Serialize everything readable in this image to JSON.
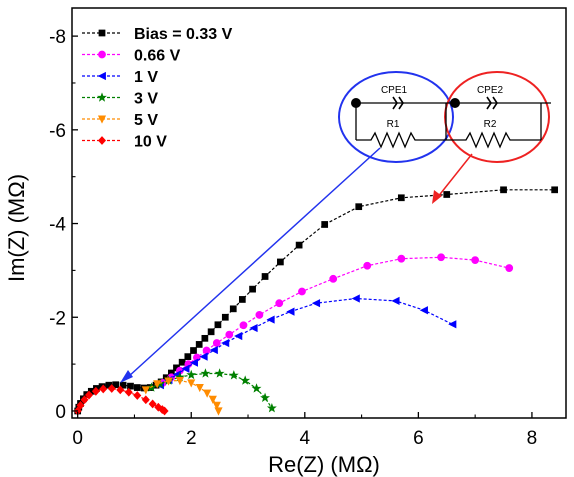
{
  "chart_data": {
    "type": "scatter",
    "title": "",
    "xlabel": "Re(Z) (MΩ)",
    "ylabel": "Im(Z) (MΩ)",
    "xlim": [
      -0.1,
      8.6
    ],
    "ylim": [
      0.15,
      -8.6
    ],
    "y_inverted": true,
    "x_ticks": [
      0,
      2,
      4,
      6,
      8
    ],
    "x_tick_labels": [
      "0",
      "2",
      "4",
      "6",
      "8"
    ],
    "y_ticks": [
      0,
      -2,
      -4,
      -6,
      -8
    ],
    "y_tick_labels": [
      "0",
      "-2",
      "-4",
      "-6",
      "-8"
    ],
    "grid": false,
    "legend_position": "top-left",
    "series": [
      {
        "name": "Bias = 0.33 V",
        "color": "#000000",
        "marker": "square",
        "x": [
          0.0,
          0.02,
          0.05,
          0.1,
          0.16,
          0.24,
          0.33,
          0.43,
          0.55,
          0.67,
          0.8,
          0.93,
          1.05,
          1.17,
          1.28,
          1.38,
          1.47,
          1.56,
          1.65,
          1.74,
          1.84,
          1.94,
          2.04,
          2.14,
          2.24,
          2.35,
          2.47,
          2.6,
          2.74,
          2.9,
          3.08,
          3.3,
          3.57,
          3.9,
          4.35,
          4.95,
          5.7,
          6.5,
          7.5,
          8.4
        ],
        "y": [
          0.0,
          -0.08,
          -0.16,
          -0.26,
          -0.35,
          -0.42,
          -0.48,
          -0.52,
          -0.55,
          -0.56,
          -0.55,
          -0.53,
          -0.5,
          -0.49,
          -0.5,
          -0.55,
          -0.62,
          -0.71,
          -0.81,
          -0.92,
          -1.04,
          -1.16,
          -1.29,
          -1.42,
          -1.55,
          -1.69,
          -1.84,
          -2.0,
          -2.18,
          -2.38,
          -2.6,
          -2.87,
          -3.18,
          -3.54,
          -3.98,
          -4.36,
          -4.55,
          -4.62,
          -4.72,
          -4.72
        ]
      },
      {
        "name": "0.66 V",
        "color": "#ff00ff",
        "marker": "circle",
        "x": [
          1.5,
          1.65,
          1.8,
          1.95,
          2.1,
          2.27,
          2.45,
          2.67,
          2.92,
          3.2,
          3.55,
          3.95,
          4.5,
          5.1,
          5.7,
          6.4,
          7.0,
          7.6
        ],
        "y": [
          -0.6,
          -0.72,
          -0.86,
          -1.0,
          -1.14,
          -1.29,
          -1.45,
          -1.63,
          -1.83,
          -2.05,
          -2.3,
          -2.55,
          -2.82,
          -3.1,
          -3.25,
          -3.28,
          -3.22,
          -3.05
        ]
      },
      {
        "name": "1 V",
        "color": "#0000ff",
        "marker": "triangle-left",
        "x": [
          1.45,
          1.6,
          1.75,
          1.9,
          2.05,
          2.22,
          2.4,
          2.6,
          2.83,
          3.1,
          3.4,
          3.75,
          4.2,
          4.9,
          5.6,
          6.1,
          6.6
        ],
        "y": [
          -0.55,
          -0.66,
          -0.78,
          -0.9,
          -1.03,
          -1.16,
          -1.3,
          -1.45,
          -1.6,
          -1.77,
          -1.95,
          -2.12,
          -2.3,
          -2.4,
          -2.35,
          -2.15,
          -1.85
        ]
      },
      {
        "name": "3 V",
        "color": "#008000",
        "marker": "star",
        "x": [
          1.3,
          1.45,
          1.6,
          1.8,
          2.0,
          2.25,
          2.5,
          2.75,
          2.95,
          3.15,
          3.3,
          3.42
        ],
        "y": [
          -0.5,
          -0.58,
          -0.65,
          -0.72,
          -0.77,
          -0.8,
          -0.8,
          -0.76,
          -0.65,
          -0.48,
          -0.28,
          -0.06
        ]
      },
      {
        "name": "5 V",
        "color": "#ff8c00",
        "marker": "triangle-down",
        "x": [
          1.2,
          1.4,
          1.6,
          1.8,
          2.0,
          2.15,
          2.28,
          2.38,
          2.45,
          2.48
        ],
        "y": [
          -0.45,
          -0.58,
          -0.64,
          -0.65,
          -0.6,
          -0.5,
          -0.38,
          -0.25,
          -0.12,
          0.0
        ]
      },
      {
        "name": "10 V",
        "color": "#ff0000",
        "marker": "diamond",
        "x": [
          0.0,
          0.05,
          0.12,
          0.2,
          0.32,
          0.45,
          0.6,
          0.75,
          0.9,
          1.05,
          1.2,
          1.32,
          1.42,
          1.49,
          1.53
        ],
        "y": [
          0.0,
          -0.12,
          -0.24,
          -0.34,
          -0.42,
          -0.47,
          -0.48,
          -0.45,
          -0.4,
          -0.33,
          -0.24,
          -0.15,
          -0.08,
          -0.03,
          0.0
        ]
      }
    ],
    "annotations": [
      {
        "type": "inset",
        "label": "equivalent-circuit",
        "elements": [
          "CPE1",
          "R1",
          "CPE2",
          "R2"
        ]
      }
    ]
  }
}
